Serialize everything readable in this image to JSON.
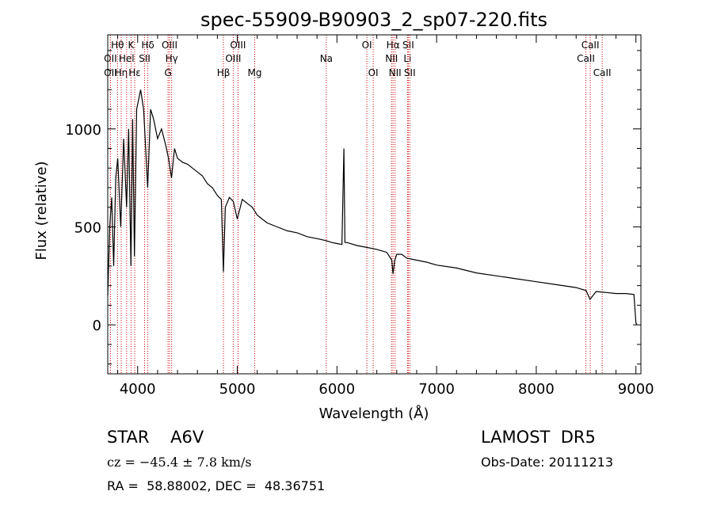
{
  "chart_data": {
    "type": "line",
    "title": "spec-55909-B90903_2_sp07-220.fits",
    "xlabel": "Wavelength (Å)",
    "ylabel": "Flux (relative)",
    "xlim": [
      3700,
      9050
    ],
    "ylim": [
      -250,
      1480
    ],
    "x_ticks": [
      4000,
      5000,
      6000,
      7000,
      8000,
      9000
    ],
    "y_ticks": [
      0,
      500,
      1000
    ],
    "grid": false,
    "line_color": "#000000",
    "marker_color": "#cc0000",
    "series": [
      {
        "x": [
          3700,
          3720,
          3740,
          3760,
          3780,
          3800,
          3830,
          3860,
          3889,
          3910,
          3933,
          3950,
          3968,
          3990,
          4010,
          4030,
          4060,
          4101,
          4130,
          4160,
          4200,
          4240,
          4280,
          4310,
          4340,
          4370,
          4400,
          4450,
          4500,
          4550,
          4600,
          4650,
          4700,
          4750,
          4800,
          4840,
          4861,
          4880,
          4920,
          4960,
          5000,
          5050,
          5100,
          5150,
          5200,
          5250,
          5300,
          5400,
          5500,
          5600,
          5700,
          5800,
          5890,
          5950,
          6000,
          6050,
          6070,
          6080,
          6100,
          6200,
          6300,
          6400,
          6500,
          6550,
          6563,
          6580,
          6600,
          6650,
          6700,
          6800,
          6900,
          7000,
          7200,
          7400,
          7600,
          7800,
          8000,
          8200,
          8400,
          8500,
          8540,
          8600,
          8700,
          8800,
          8900,
          8980,
          9000,
          9010
        ],
        "y": [
          150,
          500,
          650,
          300,
          750,
          850,
          500,
          950,
          600,
          1000,
          300,
          1050,
          350,
          1100,
          1150,
          1200,
          1100,
          700,
          1100,
          1050,
          950,
          1000,
          920,
          850,
          750,
          900,
          850,
          830,
          820,
          800,
          780,
          760,
          720,
          700,
          660,
          640,
          270,
          600,
          650,
          630,
          540,
          640,
          620,
          600,
          560,
          540,
          520,
          500,
          480,
          470,
          450,
          440,
          430,
          420,
          415,
          410,
          900,
          420,
          420,
          405,
          395,
          385,
          370,
          330,
          260,
          330,
          360,
          360,
          340,
          330,
          320,
          305,
          290,
          265,
          250,
          235,
          220,
          205,
          190,
          175,
          130,
          170,
          165,
          160,
          160,
          155,
          10,
          0
        ]
      }
    ],
    "lines": [
      {
        "label": "Hθ",
        "x": 3798,
        "row": 0
      },
      {
        "label": "OII",
        "x": 3727,
        "row": 1
      },
      {
        "label": "OII",
        "x": 3727,
        "row": 2
      },
      {
        "label": "Hη",
        "x": 3835,
        "row": 2
      },
      {
        "label": "Hel",
        "x": 3889,
        "row": 1
      },
      {
        "label": "K",
        "x": 3934,
        "row": 0
      },
      {
        "label": "Hε",
        "x": 3970,
        "row": 2
      },
      {
        "label": "SII",
        "x": 4070,
        "row": 1
      },
      {
        "label": "Hδ",
        "x": 4102,
        "row": 0
      },
      {
        "label": "OIII",
        "x": 4320,
        "row": 0
      },
      {
        "label": "Hγ",
        "x": 4341,
        "row": 1
      },
      {
        "label": "G",
        "x": 4305,
        "row": 2
      },
      {
        "label": "Hβ",
        "x": 4861,
        "row": 2
      },
      {
        "label": "OIII",
        "x": 5007,
        "row": 0
      },
      {
        "label": "OIII",
        "x": 4959,
        "row": 1
      },
      {
        "label": "Mg",
        "x": 5175,
        "row": 2
      },
      {
        "label": "Na",
        "x": 5893,
        "row": 1
      },
      {
        "label": "OI",
        "x": 6300,
        "row": 0
      },
      {
        "label": "OI",
        "x": 6364,
        "row": 2
      },
      {
        "label": "Hα",
        "x": 6563,
        "row": 0
      },
      {
        "label": "NII",
        "x": 6548,
        "row": 1
      },
      {
        "label": "NII",
        "x": 6583,
        "row": 2
      },
      {
        "label": "SII",
        "x": 6716,
        "row": 0
      },
      {
        "label": "Li",
        "x": 6708,
        "row": 1
      },
      {
        "label": "SII",
        "x": 6731,
        "row": 2
      },
      {
        "label": "CaII",
        "x": 8542,
        "row": 0
      },
      {
        "label": "CaII",
        "x": 8498,
        "row": 1
      },
      {
        "label": "CaII",
        "x": 8662,
        "row": 2
      }
    ]
  },
  "footer": {
    "object_class": "STAR    A6V",
    "survey": "LAMOST  DR5",
    "redshift": "cz = −45.4 ± 7.8 km/s",
    "obs_date": "Obs-Date: 20111213",
    "radec": "RA =  58.88002, DEC =  48.36751"
  }
}
